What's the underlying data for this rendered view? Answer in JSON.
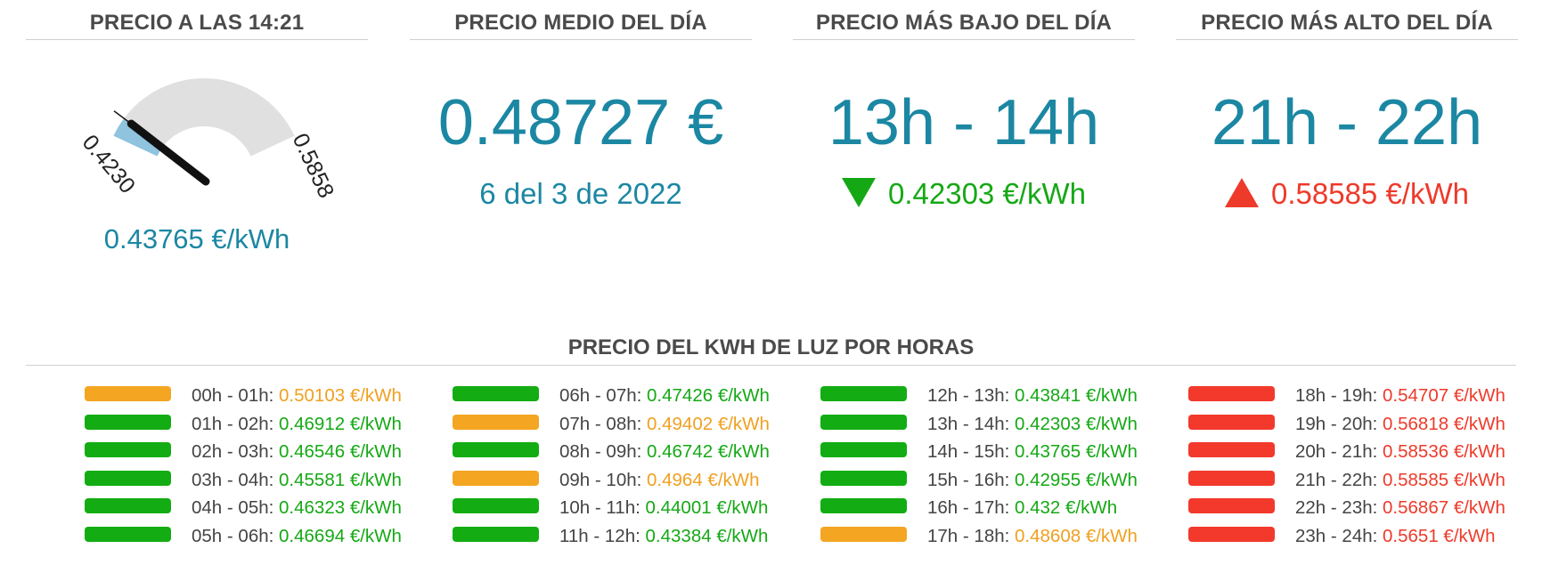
{
  "colors": {
    "accent_blue": "#1b87a3",
    "cheap_green": "#15a815",
    "mid_orange": "#f4a521",
    "expensive_red": "#ee3a2a"
  },
  "current": {
    "title": "PRECIO A LAS 14:21",
    "gauge_min_label": "0.4230",
    "gauge_max_label": "0.5858",
    "gauge_min": 0.423,
    "gauge_max": 0.5858,
    "gauge_value": 0.43765,
    "value_text": "0.43765 €/kWh"
  },
  "average": {
    "title": "PRECIO MEDIO DEL DÍA",
    "value": "0.48727 €",
    "date": "6 del 3 de 2022"
  },
  "lowest": {
    "title": "PRECIO MÁS BAJO DEL DÍA",
    "range": "13h - 14h",
    "icon": "down-triangle-icon",
    "price": "0.42303 €/kWh"
  },
  "highest": {
    "title": "PRECIO MÁS ALTO DEL DÍA",
    "range": "21h - 22h",
    "icon": "up-triangle-icon",
    "price": "0.58585 €/kWh"
  },
  "hours": {
    "title": "PRECIO DEL KWH DE LUZ POR HORAS",
    "items": [
      {
        "range": "00h - 01h:",
        "price": "0.50103 €/kWh",
        "level": "orange"
      },
      {
        "range": "01h - 02h:",
        "price": "0.46912 €/kWh",
        "level": "green"
      },
      {
        "range": "02h - 03h:",
        "price": "0.46546 €/kWh",
        "level": "green"
      },
      {
        "range": "03h - 04h:",
        "price": "0.45581 €/kWh",
        "level": "green"
      },
      {
        "range": "04h - 05h:",
        "price": "0.46323 €/kWh",
        "level": "green"
      },
      {
        "range": "05h - 06h:",
        "price": "0.46694 €/kWh",
        "level": "green"
      },
      {
        "range": "06h - 07h:",
        "price": "0.47426 €/kWh",
        "level": "green"
      },
      {
        "range": "07h - 08h:",
        "price": "0.49402 €/kWh",
        "level": "orange"
      },
      {
        "range": "08h - 09h:",
        "price": "0.46742 €/kWh",
        "level": "green"
      },
      {
        "range": "09h - 10h:",
        "price": "0.4964 €/kWh",
        "level": "orange"
      },
      {
        "range": "10h - 11h:",
        "price": "0.44001 €/kWh",
        "level": "green"
      },
      {
        "range": "11h - 12h:",
        "price": "0.43384 €/kWh",
        "level": "green"
      },
      {
        "range": "12h - 13h:",
        "price": "0.43841 €/kWh",
        "level": "green"
      },
      {
        "range": "13h - 14h:",
        "price": "0.42303 €/kWh",
        "level": "green"
      },
      {
        "range": "14h - 15h:",
        "price": "0.43765 €/kWh",
        "level": "green"
      },
      {
        "range": "15h - 16h:",
        "price": "0.42955 €/kWh",
        "level": "green"
      },
      {
        "range": "16h - 17h:",
        "price": "0.432 €/kWh",
        "level": "green"
      },
      {
        "range": "17h - 18h:",
        "price": "0.48608 €/kWh",
        "level": "orange"
      },
      {
        "range": "18h - 19h:",
        "price": "0.54707 €/kWh",
        "level": "red"
      },
      {
        "range": "19h - 20h:",
        "price": "0.56818 €/kWh",
        "level": "red"
      },
      {
        "range": "20h - 21h:",
        "price": "0.58536 €/kWh",
        "level": "red"
      },
      {
        "range": "21h - 22h:",
        "price": "0.58585 €/kWh",
        "level": "red"
      },
      {
        "range": "22h - 23h:",
        "price": "0.56867 €/kWh",
        "level": "red"
      },
      {
        "range": "23h - 24h:",
        "price": "0.5651 €/kWh",
        "level": "red"
      }
    ]
  }
}
